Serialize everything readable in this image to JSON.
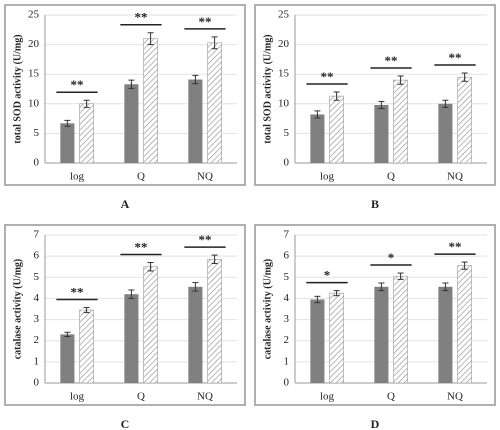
{
  "chart_data": [
    {
      "type": "bar",
      "label": "A",
      "y_label": "total SOD activity (U/mg)",
      "categories": [
        "log",
        "Q",
        "NQ"
      ],
      "series": [
        {
          "color": "#808080",
          "pattern": "solid",
          "values": [
            6.7,
            13.3,
            14.1
          ],
          "errors": [
            0.5,
            0.7,
            0.7
          ]
        },
        {
          "color": "#9a9a9a",
          "pattern": "hatch",
          "values": [
            10.0,
            21.0,
            20.3
          ],
          "errors": [
            0.6,
            1.0,
            1.0
          ]
        }
      ],
      "annotations": [
        "**",
        "**",
        "**"
      ],
      "ylim": [
        0,
        25
      ],
      "yticks": [
        0,
        5,
        10,
        15,
        20,
        25
      ],
      "grid": true
    },
    {
      "type": "bar",
      "label": "B",
      "y_label": "total SOD activity (U/mg)",
      "categories": [
        "log",
        "Q",
        "NQ"
      ],
      "series": [
        {
          "color": "#808080",
          "pattern": "solid",
          "values": [
            8.2,
            9.8,
            10.0
          ],
          "errors": [
            0.6,
            0.6,
            0.6
          ]
        },
        {
          "color": "#9a9a9a",
          "pattern": "hatch",
          "values": [
            11.3,
            14.0,
            14.5
          ],
          "errors": [
            0.7,
            0.7,
            0.7
          ]
        }
      ],
      "annotations": [
        "**",
        "**",
        "**"
      ],
      "ylim": [
        0,
        25
      ],
      "yticks": [
        0,
        5,
        10,
        15,
        20,
        25
      ],
      "grid": true
    },
    {
      "type": "bar",
      "label": "C",
      "y_label": "catalase activity (U/mg)",
      "categories": [
        "log",
        "Q",
        "NQ"
      ],
      "series": [
        {
          "color": "#808080",
          "pattern": "solid",
          "values": [
            2.3,
            4.2,
            4.55
          ],
          "errors": [
            0.1,
            0.2,
            0.2
          ]
        },
        {
          "color": "#9a9a9a",
          "pattern": "hatch",
          "values": [
            3.45,
            5.5,
            5.85
          ],
          "errors": [
            0.12,
            0.2,
            0.2
          ]
        }
      ],
      "annotations": [
        "**",
        "**",
        "**"
      ],
      "ylim": [
        0,
        7
      ],
      "yticks": [
        0,
        1,
        2,
        3,
        4,
        5,
        6,
        7
      ],
      "grid": true
    },
    {
      "type": "bar",
      "label": "D",
      "y_label": "catalase activity (U/mg)",
      "categories": [
        "log",
        "Q",
        "NQ"
      ],
      "series": [
        {
          "color": "#808080",
          "pattern": "solid",
          "values": [
            3.95,
            4.55,
            4.55
          ],
          "errors": [
            0.15,
            0.18,
            0.18
          ]
        },
        {
          "color": "#9a9a9a",
          "pattern": "hatch",
          "values": [
            4.25,
            5.05,
            5.55
          ],
          "errors": [
            0.12,
            0.15,
            0.17
          ]
        }
      ],
      "annotations": [
        "*",
        "*",
        "**"
      ],
      "ylim": [
        0,
        7
      ],
      "yticks": [
        0,
        1,
        2,
        3,
        4,
        5,
        6,
        7
      ],
      "grid": true
    }
  ]
}
